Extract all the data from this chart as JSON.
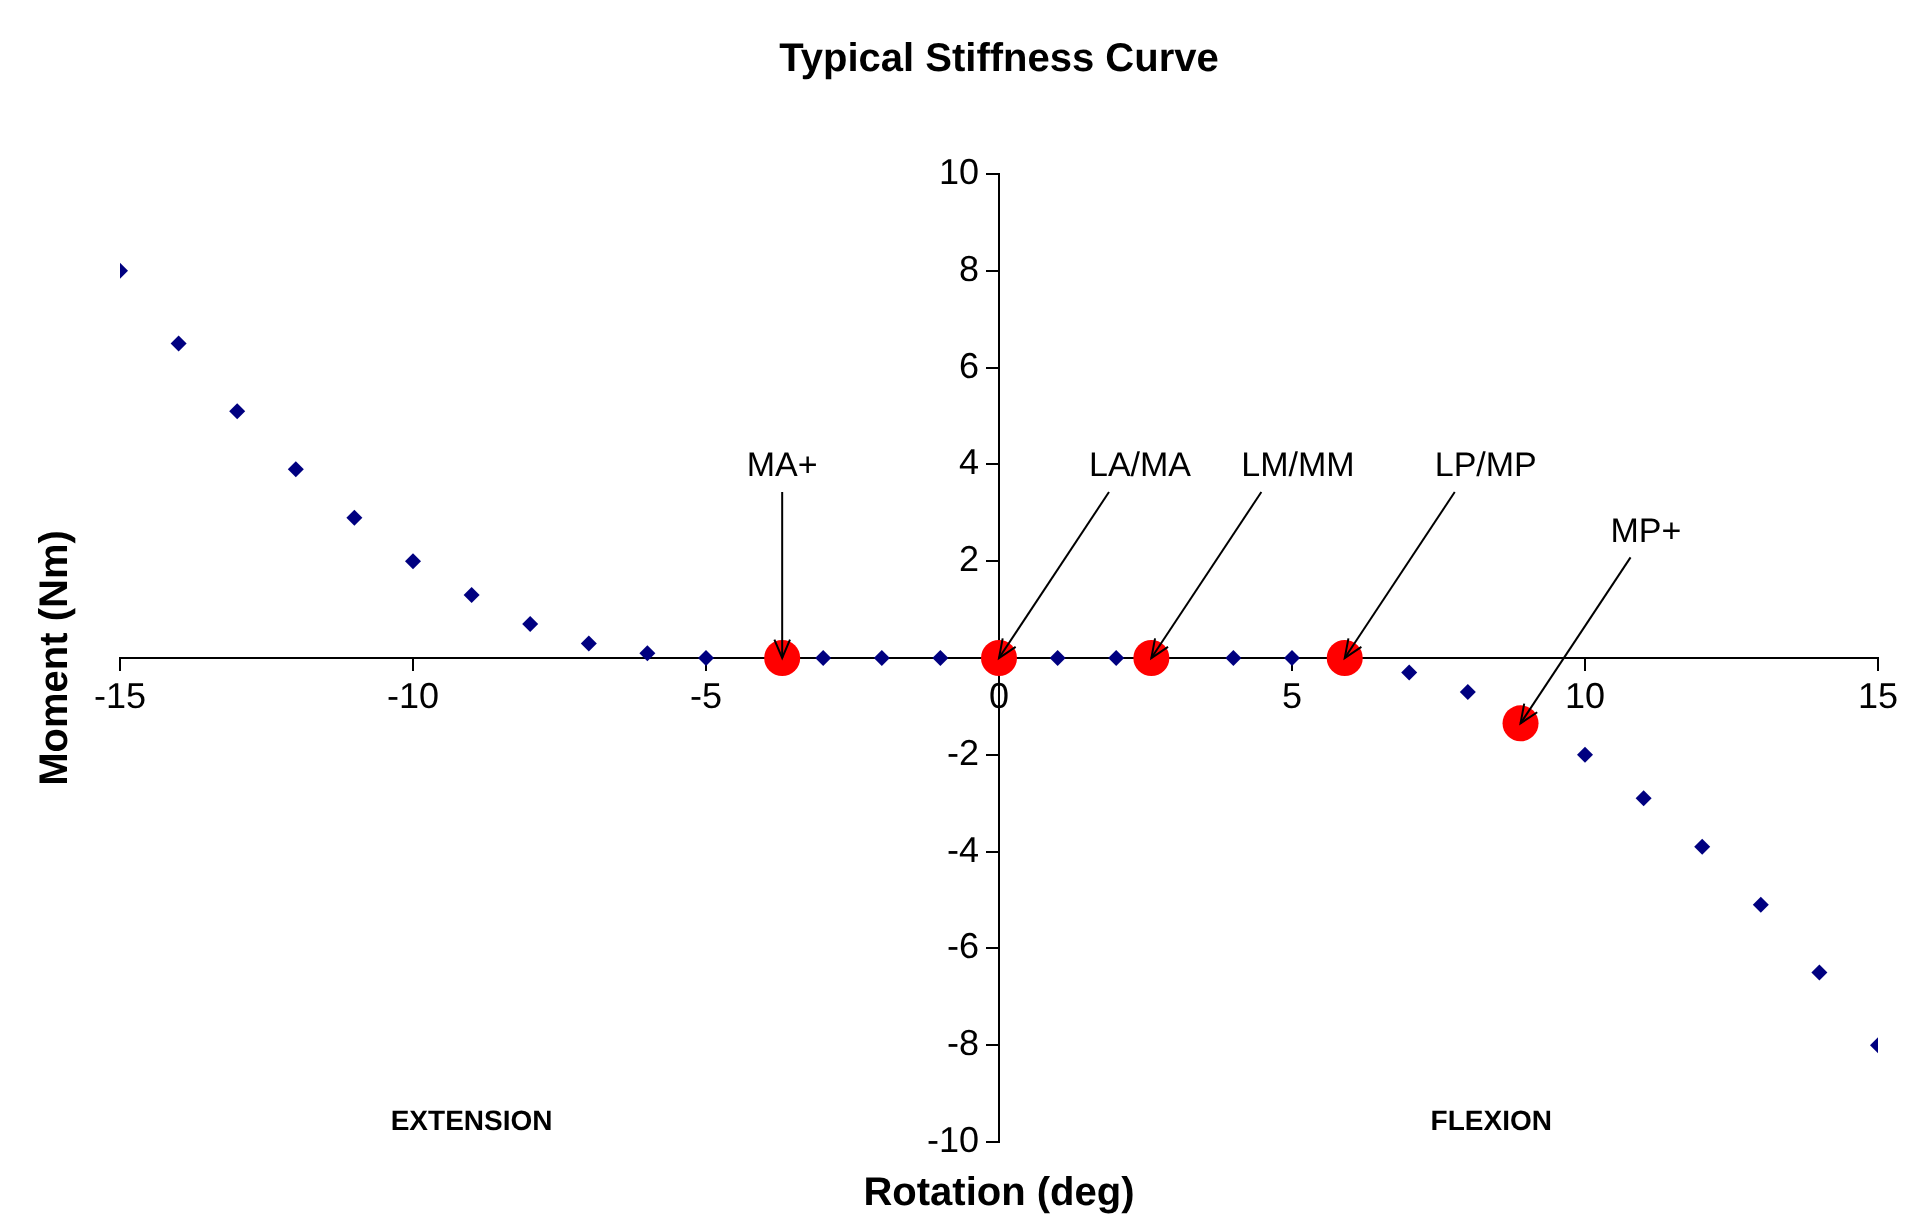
{
  "chart_data": {
    "type": "scatter",
    "title": "Typical Stiffness Curve",
    "xlabel": "Rotation (deg)",
    "ylabel": "Moment (Nm)",
    "xlim": [
      -15,
      15
    ],
    "xticks": [
      -15,
      -10,
      -5,
      0,
      5,
      10,
      15
    ],
    "ylim": [
      -10,
      10
    ],
    "yticks": [
      -10,
      -8,
      -6,
      -4,
      -2,
      2,
      4,
      6,
      8,
      10
    ],
    "grid": false,
    "legend": false,
    "marker": "diamond",
    "series": [
      {
        "color": "#000080",
        "x": [
          -15,
          -14,
          -13,
          -12,
          -11,
          -10,
          -9,
          -8,
          -7,
          -6,
          -5,
          -3,
          -2,
          -1,
          1,
          2,
          4,
          5,
          7,
          8,
          10,
          11,
          12,
          13,
          14,
          15
        ],
        "values": [
          8,
          6.5,
          5.1,
          3.9,
          2.9,
          2.0,
          1.3,
          0.7,
          0.3,
          0.1,
          0,
          0,
          0,
          0,
          0,
          0,
          0,
          0,
          -0.3,
          -0.7,
          -2.0,
          -2.9,
          -3.9,
          -5.1,
          -6.5,
          -8
        ]
      },
      {
        "color": "#ff0000",
        "marker": "circle",
        "x": [
          -3.7,
          0,
          2.6,
          5.9,
          8.9
        ],
        "values": [
          0,
          0,
          0,
          0,
          -1.35
        ]
      }
    ],
    "annotations": [
      {
        "text": "MA+",
        "x": -3.7,
        "y": 0
      },
      {
        "text": "LA/MA",
        "x": 0,
        "y": 0
      },
      {
        "text": "LM/MM",
        "x": 2.6,
        "y": 0
      },
      {
        "text": "LP/MP",
        "x": 5.9,
        "y": 0
      },
      {
        "text": "MP+",
        "x": 8.9,
        "y": -1.35
      },
      "EXTENSION",
      "FLEXION"
    ]
  }
}
